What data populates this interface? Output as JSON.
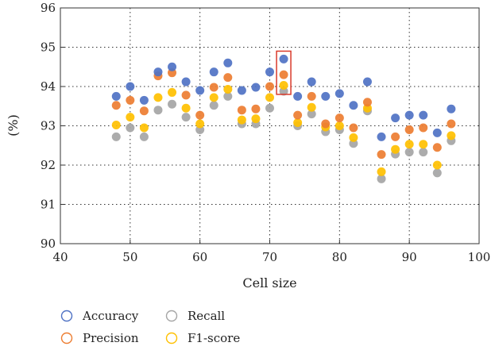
{
  "chart_data": {
    "type": "scatter",
    "xlabel": "Cell size",
    "ylabel": "(%)",
    "xlim": [
      40,
      100
    ],
    "ylim": [
      90,
      96
    ],
    "xticks": [
      40,
      50,
      60,
      70,
      80,
      90,
      100
    ],
    "yticks": [
      90,
      91,
      92,
      93,
      94,
      95,
      96
    ],
    "grid": "dotted",
    "legend": "bottom-left",
    "highlight": {
      "x": 72,
      "y_range": [
        93.8,
        94.9
      ],
      "color": "#d93a2b"
    },
    "x": [
      48,
      50,
      52,
      54,
      56,
      58,
      60,
      62,
      64,
      66,
      68,
      70,
      72,
      74,
      76,
      78,
      80,
      82,
      84,
      86,
      88,
      90,
      92,
      94,
      96
    ],
    "series": [
      {
        "name": "Accuracy",
        "color": "#4f72c4",
        "values": [
          93.75,
          94.0,
          93.65,
          94.37,
          94.5,
          94.12,
          93.9,
          94.37,
          94.6,
          93.9,
          93.98,
          94.37,
          94.7,
          93.75,
          94.12,
          93.75,
          93.82,
          93.52,
          94.12,
          92.72,
          93.2,
          93.27,
          93.27,
          92.82,
          93.43
        ]
      },
      {
        "name": "Precision",
        "color": "#ed7d31",
        "values": [
          93.52,
          93.65,
          93.38,
          94.27,
          94.35,
          93.78,
          93.27,
          93.98,
          94.23,
          93.4,
          93.43,
          94.0,
          94.3,
          93.27,
          93.75,
          93.05,
          93.2,
          92.95,
          93.6,
          92.27,
          92.72,
          92.9,
          92.95,
          92.45,
          93.05
        ]
      },
      {
        "name": "Recall",
        "color": "#a5a5a5",
        "values": [
          92.72,
          92.95,
          92.72,
          93.4,
          93.55,
          93.22,
          92.9,
          93.52,
          93.75,
          93.05,
          93.05,
          93.45,
          93.88,
          93.0,
          93.3,
          92.85,
          92.9,
          92.55,
          93.38,
          91.65,
          92.28,
          92.33,
          92.33,
          91.8,
          92.62
        ]
      },
      {
        "name": "F1-score",
        "color": "#ffc000",
        "values": [
          93.02,
          93.22,
          92.95,
          93.72,
          93.85,
          93.45,
          93.05,
          93.72,
          93.93,
          93.15,
          93.18,
          93.72,
          94.03,
          93.08,
          93.47,
          92.97,
          93.0,
          92.7,
          93.45,
          91.83,
          92.4,
          92.53,
          92.53,
          92.0,
          92.75
        ]
      }
    ]
  }
}
